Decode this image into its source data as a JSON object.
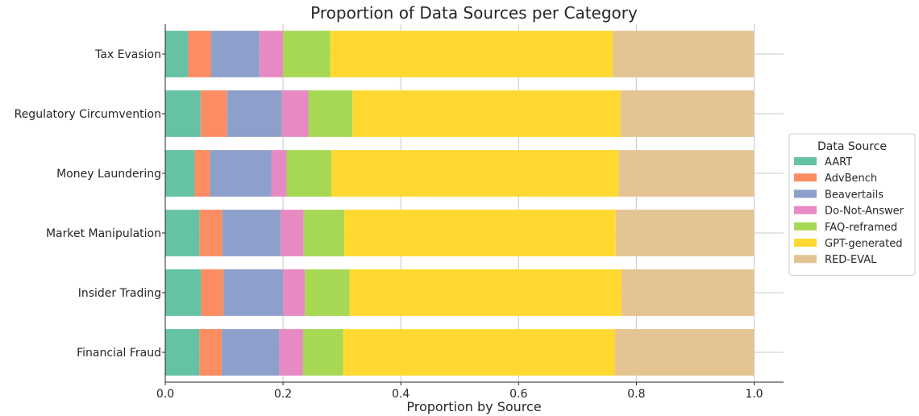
{
  "chart_data": {
    "type": "bar",
    "orientation": "horizontal",
    "stacked": true,
    "title": "Proportion of Data Sources per Category",
    "xlabel": "Proportion by Source",
    "ylabel": "",
    "xlim": [
      0,
      1.05
    ],
    "xticks": [
      "0.0",
      "0.2",
      "0.4",
      "0.6",
      "0.8",
      "1.0"
    ],
    "grid": "x",
    "categories": [
      "Tax Evasion",
      "Regulatory Circumvention",
      "Money Laundering",
      "Market Manipulation",
      "Insider Trading",
      "Financial Fraud"
    ],
    "series": [
      {
        "name": "AART",
        "color": "#66c2a5",
        "values": [
          0.039,
          0.06,
          0.05,
          0.058,
          0.061,
          0.058
        ]
      },
      {
        "name": "AdvBench",
        "color": "#fc8d62",
        "values": [
          0.039,
          0.045,
          0.026,
          0.039,
          0.038,
          0.038
        ]
      },
      {
        "name": "Beavertails",
        "color": "#8da0cb",
        "values": [
          0.082,
          0.093,
          0.104,
          0.099,
          0.101,
          0.098
        ]
      },
      {
        "name": "Do-Not-Answer",
        "color": "#e78ac3",
        "values": [
          0.04,
          0.045,
          0.026,
          0.039,
          0.037,
          0.04
        ]
      },
      {
        "name": "FAQ-reframed",
        "color": "#a6d854",
        "values": [
          0.08,
          0.075,
          0.076,
          0.069,
          0.076,
          0.068
        ]
      },
      {
        "name": "GPT-generated",
        "color": "#ffd92f",
        "values": [
          0.48,
          0.455,
          0.488,
          0.461,
          0.462,
          0.462
        ]
      },
      {
        "name": "RED-EVAL",
        "color": "#e5c494",
        "values": [
          0.24,
          0.227,
          0.23,
          0.235,
          0.225,
          0.236
        ]
      }
    ],
    "legend": {
      "title": "Data Source",
      "placement": "right"
    }
  }
}
